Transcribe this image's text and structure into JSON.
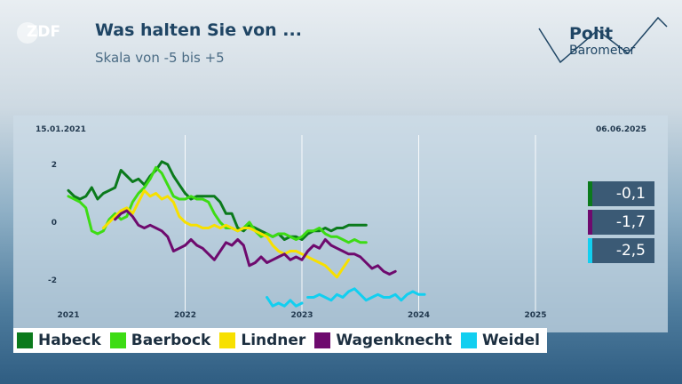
{
  "header": {
    "logo_text": "ZDF",
    "title": "Was halten Sie von ...",
    "subtitle": "Skala von -5 bis +5",
    "brand_line1": "Polit",
    "brand_line2": "Barometer"
  },
  "colors": {
    "Habeck": "#0b7a1c",
    "Baerbock": "#3ddc14",
    "Lindner": "#f7e000",
    "Wagenknecht": "#6e0a6e",
    "Weidel": "#12cff0",
    "badge": "#3b5a75"
  },
  "chart_data": {
    "type": "line",
    "title": "Was halten Sie von ...",
    "subtitle": "Skala von -5 bis +5",
    "start_label": "15.01.2021",
    "end_label": "06.06.2025",
    "x_ticks": [
      "2021",
      "2022",
      "2023",
      "2024",
      "2025"
    ],
    "y_ticks": [
      2,
      0,
      -2
    ],
    "y_tick_labels": [
      "2",
      "0",
      "-2"
    ],
    "ylim": [
      -3.1,
      2.6
    ],
    "grid": "vertical at year ticks",
    "legend_position": "bottom",
    "series": [
      {
        "name": "Habeck",
        "start": 2021.0,
        "step": 0.05,
        "values": [
          1.1,
          0.9,
          0.8,
          0.9,
          1.2,
          0.8,
          1.0,
          1.1,
          1.2,
          1.8,
          1.6,
          1.4,
          1.5,
          1.3,
          1.6,
          1.8,
          2.1,
          2.0,
          1.6,
          1.3,
          1.0,
          0.8,
          0.9,
          0.9,
          0.9,
          0.9,
          0.7,
          0.3,
          0.3,
          -0.2,
          -0.3,
          -0.1,
          -0.2,
          -0.3,
          -0.4,
          -0.5,
          -0.4,
          -0.6,
          -0.5,
          -0.5,
          -0.6,
          -0.4,
          -0.3,
          -0.3,
          -0.2,
          -0.3,
          -0.2,
          -0.2,
          -0.1,
          -0.1,
          -0.1,
          -0.1
        ]
      },
      {
        "name": "Baerbock",
        "start": 2021.0,
        "step": 0.05,
        "values": [
          0.9,
          0.8,
          0.7,
          0.5,
          -0.3,
          -0.4,
          -0.3,
          0.1,
          0.3,
          0.1,
          0.2,
          0.7,
          1.0,
          1.2,
          1.5,
          1.9,
          1.7,
          1.3,
          0.9,
          0.8,
          0.8,
          0.9,
          0.8,
          0.8,
          0.7,
          0.3,
          0.0,
          -0.2,
          -0.2,
          -0.3,
          -0.2,
          0.0,
          -0.3,
          -0.5,
          -0.4,
          -0.5,
          -0.4,
          -0.4,
          -0.5,
          -0.6,
          -0.5,
          -0.3,
          -0.3,
          -0.2,
          -0.4,
          -0.5,
          -0.5,
          -0.6,
          -0.7,
          -0.6,
          -0.7,
          -0.7
        ]
      },
      {
        "name": "Lindner",
        "start": 2021.3,
        "step": 0.05,
        "values": [
          -0.2,
          0.0,
          0.2,
          0.4,
          0.5,
          0.3,
          0.7,
          1.1,
          0.9,
          1.0,
          0.8,
          0.9,
          0.7,
          0.2,
          0.0,
          -0.1,
          -0.1,
          -0.2,
          -0.2,
          -0.1,
          -0.2,
          -0.1,
          -0.2,
          -0.3,
          -0.2,
          -0.2,
          -0.3,
          -0.4,
          -0.5,
          -0.8,
          -1.0,
          -1.1,
          -1.0,
          -1.0,
          -1.1,
          -1.2,
          -1.3,
          -1.4,
          -1.5,
          -1.7,
          -1.9,
          -1.6,
          -1.3
        ]
      },
      {
        "name": "Wagenknecht",
        "start": 2021.4,
        "step": 0.05,
        "values": [
          0.1,
          0.3,
          0.4,
          0.2,
          -0.1,
          -0.2,
          -0.1,
          -0.2,
          -0.3,
          -0.5,
          -1.0,
          -0.9,
          -0.8,
          -0.6,
          -0.8,
          -0.9,
          -1.1,
          -1.3,
          -1.0,
          -0.7,
          -0.8,
          -0.6,
          -0.8,
          -1.5,
          -1.4,
          -1.2,
          -1.4,
          -1.3,
          -1.2,
          -1.1,
          -1.3,
          -1.2,
          -1.3,
          -1.0,
          -0.8,
          -0.9,
          -0.6,
          -0.8,
          -0.9,
          -1.0,
          -1.1,
          -1.1,
          -1.2,
          -1.4,
          -1.6,
          -1.5,
          -1.7,
          -1.8,
          -1.7
        ]
      },
      {
        "name": "Weidel",
        "start": 2022.7,
        "step": 0.05,
        "values": [
          -2.6,
          -2.9,
          -2.8,
          -2.9,
          -2.7,
          -2.9,
          -2.8,
          -2.6,
          -2.6,
          -2.5,
          -2.6,
          -2.7,
          -2.5,
          -2.6,
          -2.4,
          -2.3,
          -2.5,
          -2.7,
          -2.6,
          -2.5,
          -2.6,
          -2.6,
          -2.5,
          -2.7,
          -2.5,
          -2.4,
          -2.5,
          -2.5
        ]
      }
    ],
    "current_values": [
      {
        "name": "Habeck",
        "label": "-0,1"
      },
      {
        "name": "Wagenknecht",
        "label": "-1,7"
      },
      {
        "name": "Weidel",
        "label": "-2,5"
      }
    ]
  }
}
